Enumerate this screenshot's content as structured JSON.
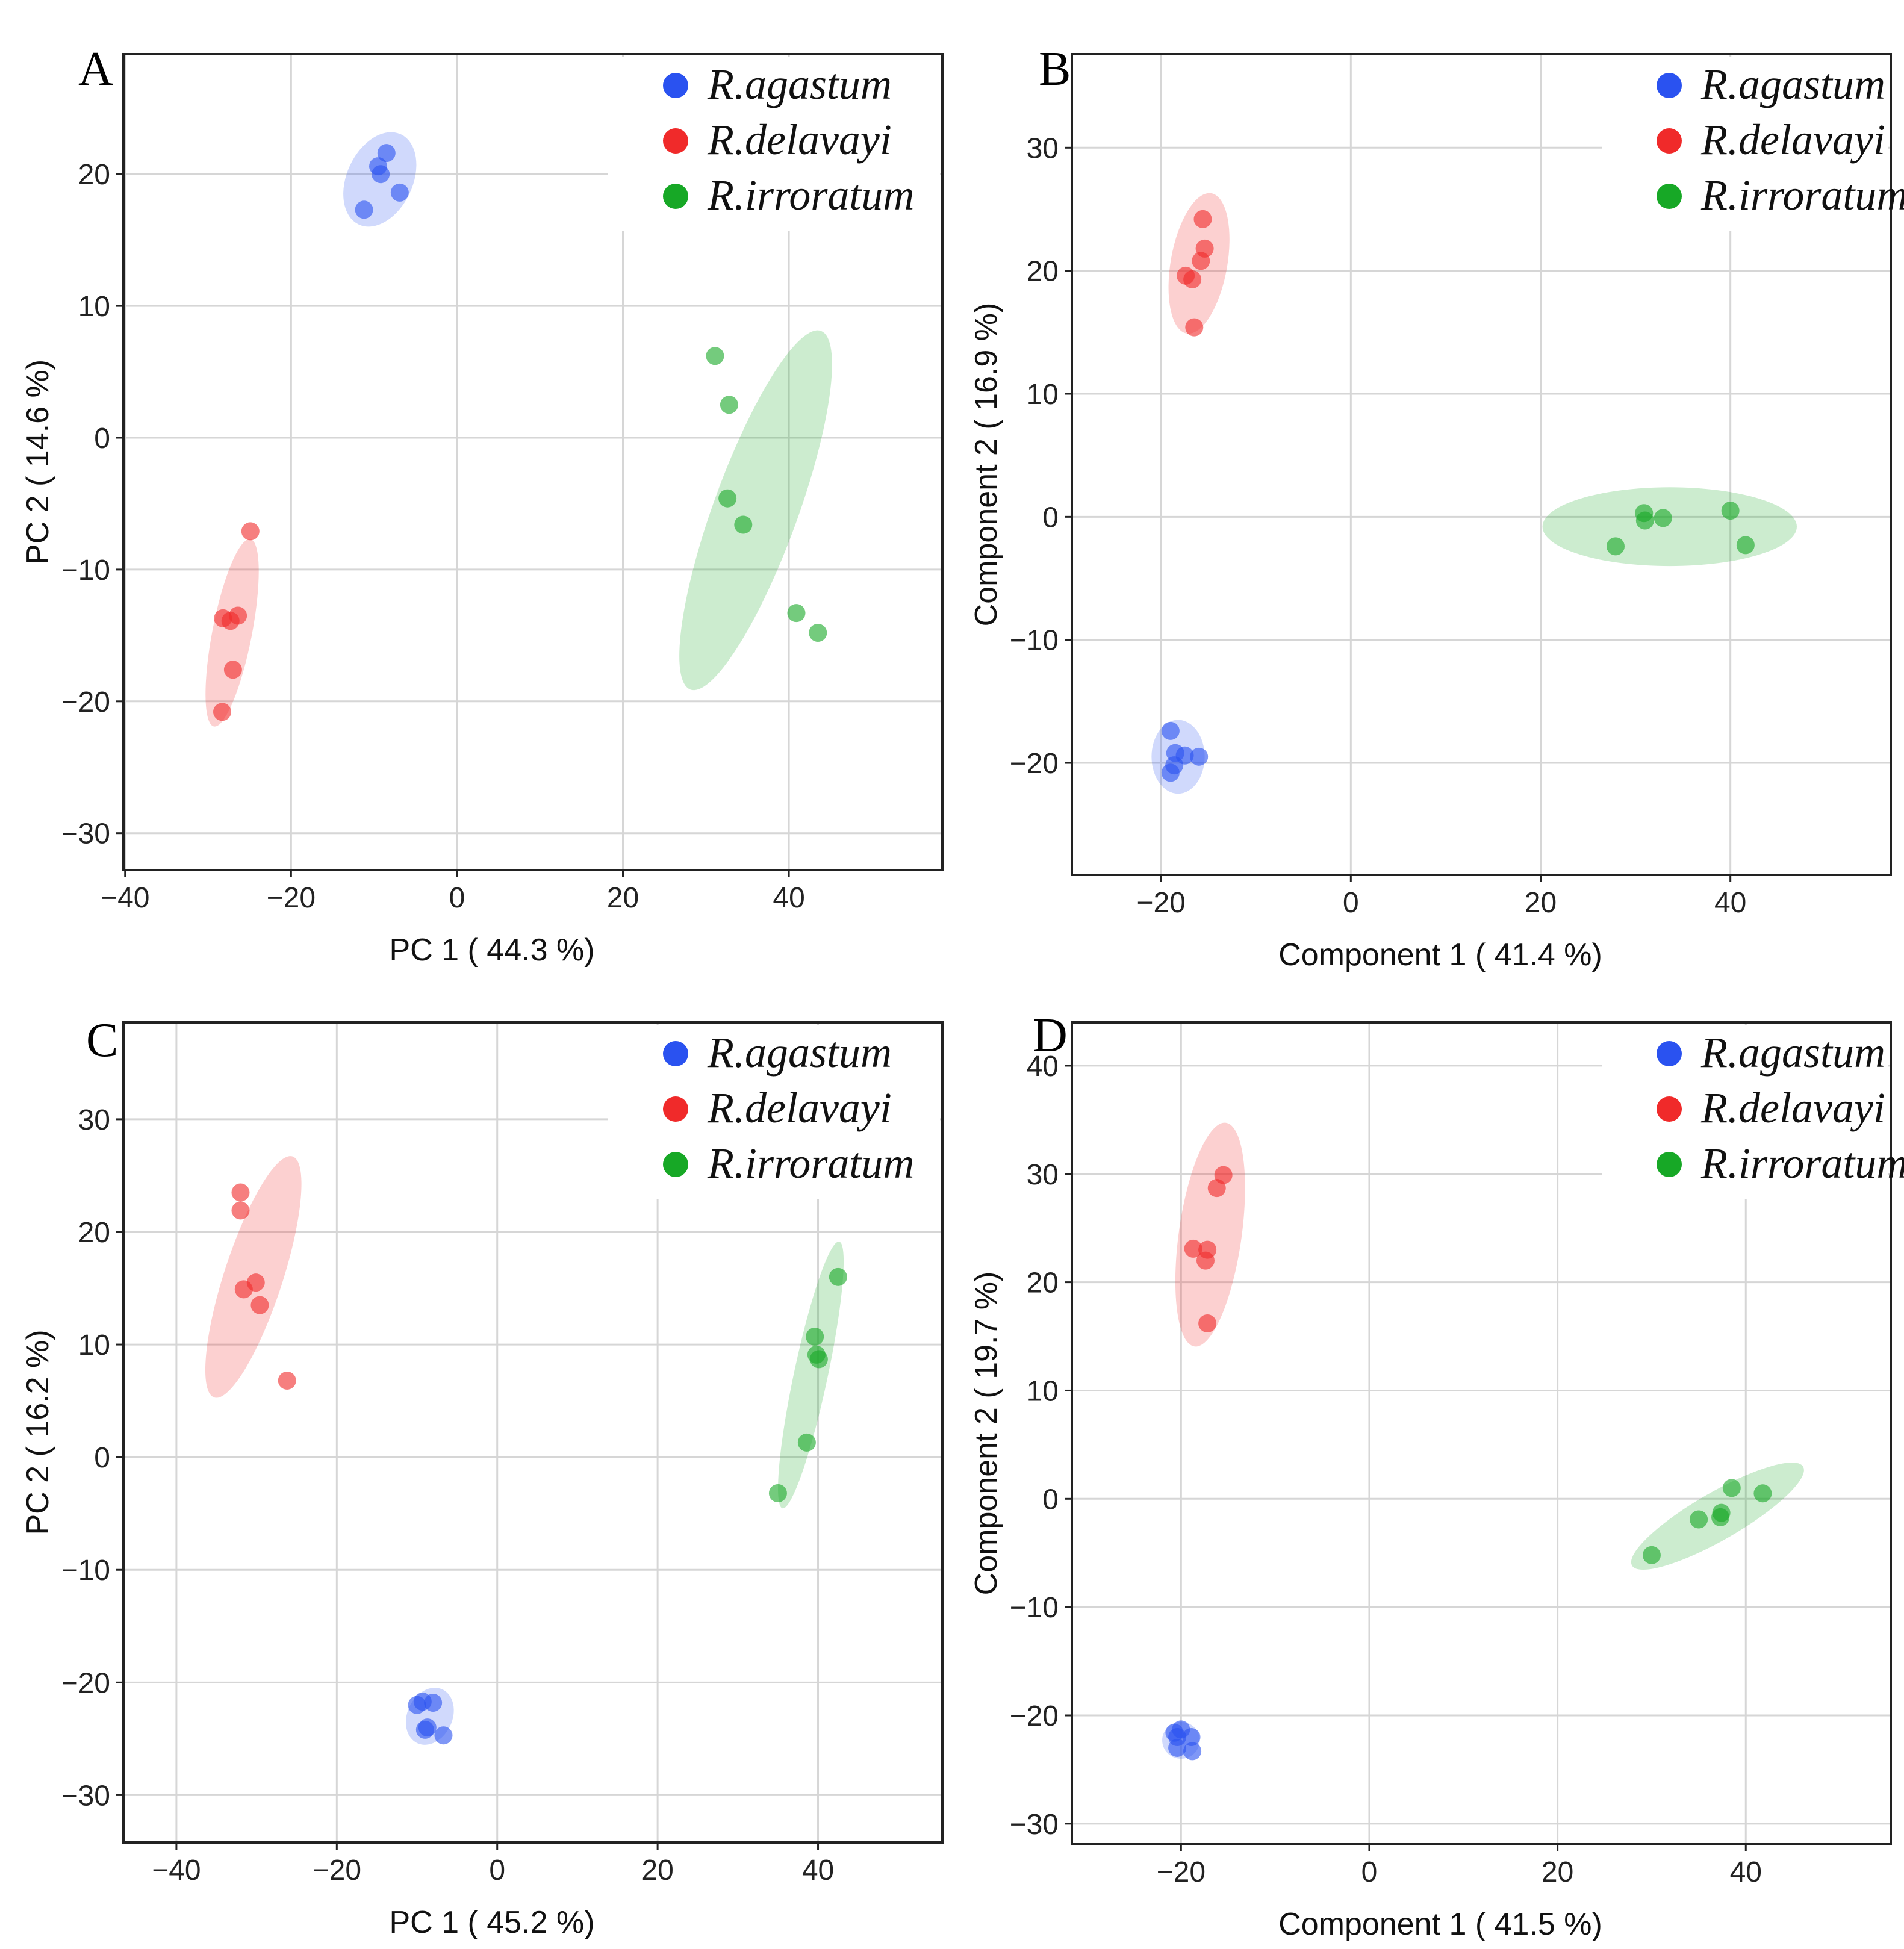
{
  "colors": {
    "R.agastum": "#2a52f0",
    "R.delavayi": "#f02a2a",
    "R.irroratum": "#17a826"
  },
  "chart_data": [
    {
      "type": "scatter",
      "panel": "A",
      "xlabel": "PC 1 ( 44.3 %)",
      "ylabel": "PC 2 ( 14.6 %)",
      "xlim": [
        -40.2,
        58.5
      ],
      "ylim": [
        -32.8,
        29.1
      ],
      "xticks": [
        -40,
        -20,
        0,
        20,
        40
      ],
      "yticks": [
        -30,
        -20,
        -10,
        0,
        10,
        20
      ],
      "legend_position": "top-right",
      "legend": [
        "R.agastum",
        "R.delavayi",
        "R.irroratum"
      ],
      "series": [
        {
          "name": "R.agastum",
          "points": [
            [
              -8.5,
              21.6
            ],
            [
              -9.5,
              20.6
            ],
            [
              -9.2,
              20.0
            ],
            [
              -6.9,
              18.6
            ],
            [
              -11.2,
              17.3
            ]
          ],
          "ellipse": {
            "cx": -9.3,
            "cy": 19.6,
            "rx": 6.0,
            "ry": 2.5,
            "angle": 65
          }
        },
        {
          "name": "R.delavayi",
          "points": [
            [
              -24.9,
              -7.1
            ],
            [
              -26.4,
              -13.5
            ],
            [
              -28.2,
              -13.7
            ],
            [
              -27.3,
              -13.9
            ],
            [
              -27.0,
              -17.6
            ],
            [
              -28.3,
              -20.8
            ]
          ],
          "ellipse": {
            "cx": -27.1,
            "cy": -14.8,
            "rx": 11.5,
            "ry": 1.5,
            "angle": 79
          }
        },
        {
          "name": "R.irroratum",
          "points": [
            [
              31.1,
              6.2
            ],
            [
              32.8,
              2.5
            ],
            [
              32.6,
              -4.6
            ],
            [
              34.5,
              -6.6
            ],
            [
              40.9,
              -13.3
            ],
            [
              43.5,
              -14.8
            ]
          ],
          "ellipse": {
            "cx": 36.0,
            "cy": -5.5,
            "rx": 23.0,
            "ry": 3.2,
            "angle": 70
          }
        }
      ]
    },
    {
      "type": "scatter",
      "panel": "B",
      "xlabel": "Component 1 ( 41.4 %)",
      "ylabel": "Component 2 ( 16.9 %)",
      "xlim": [
        -29.4,
        56.9
      ],
      "ylim": [
        -29.1,
        37.6
      ],
      "xticks": [
        -20,
        0,
        20,
        40
      ],
      "yticks": [
        -20,
        -10,
        0,
        10,
        20,
        30
      ],
      "legend_position": "top-right",
      "legend": [
        "R.agastum",
        "R.delavayi",
        "R.irroratum"
      ],
      "series": [
        {
          "name": "R.agastum",
          "points": [
            [
              -19.0,
              -17.4
            ],
            [
              -18.5,
              -19.2
            ],
            [
              -17.5,
              -19.4
            ],
            [
              -16.0,
              -19.5
            ],
            [
              -19.0,
              -20.8
            ],
            [
              -18.6,
              -20.2
            ]
          ],
          "ellipse": {
            "cx": -18.2,
            "cy": -19.5,
            "rx": 2.8,
            "ry": 3.0,
            "angle": 0
          }
        },
        {
          "name": "R.delavayi",
          "points": [
            [
              -15.6,
              24.2
            ],
            [
              -15.4,
              21.8
            ],
            [
              -15.8,
              20.8
            ],
            [
              -17.4,
              19.6
            ],
            [
              -16.7,
              19.3
            ],
            [
              -16.5,
              15.4
            ]
          ],
          "ellipse": {
            "cx": -16.0,
            "cy": 20.6,
            "rx": 7.5,
            "ry": 2.3,
            "angle": 80
          }
        },
        {
          "name": "R.irroratum",
          "points": [
            [
              30.9,
              0.3
            ],
            [
              31.0,
              -0.3
            ],
            [
              32.9,
              -0.1
            ],
            [
              40.0,
              0.5
            ],
            [
              41.6,
              -2.3
            ],
            [
              27.9,
              -2.4
            ]
          ],
          "ellipse": {
            "cx": 33.6,
            "cy": -0.8,
            "rx": 13.4,
            "ry": 3.2,
            "angle": 0
          }
        }
      ]
    },
    {
      "type": "scatter",
      "panel": "C",
      "xlabel": "PC 1 ( 45.2 %)",
      "ylabel": "PC 2 ( 16.2 %)",
      "xlim": [
        -46.6,
        55.5
      ],
      "ylim": [
        -34.2,
        38.6
      ],
      "xticks": [
        -40,
        -20,
        0,
        20,
        40
      ],
      "yticks": [
        -30,
        -20,
        -10,
        0,
        10,
        20,
        30
      ],
      "legend_position": "top-right",
      "legend": [
        "R.agastum",
        "R.delavayi",
        "R.irroratum"
      ],
      "series": [
        {
          "name": "R.agastum",
          "points": [
            [
              -10.0,
              -22.0
            ],
            [
              -9.3,
              -21.7
            ],
            [
              -8.0,
              -21.8
            ],
            [
              -9.0,
              -24.2
            ],
            [
              -8.7,
              -24.0
            ],
            [
              -6.7,
              -24.7
            ]
          ],
          "ellipse": {
            "cx": -8.4,
            "cy": -23.0,
            "rx": 3.7,
            "ry": 2.0,
            "angle": 65
          }
        },
        {
          "name": "R.delavayi",
          "points": [
            [
              -32.0,
              23.5
            ],
            [
              -32.0,
              21.9
            ],
            [
              -30.1,
              15.5
            ],
            [
              -31.6,
              14.9
            ],
            [
              -29.6,
              13.5
            ],
            [
              -26.2,
              6.8
            ]
          ],
          "ellipse": {
            "cx": -30.4,
            "cy": 16.0,
            "rx": 15.8,
            "ry": 2.6,
            "angle": 72
          }
        },
        {
          "name": "R.irroratum",
          "points": [
            [
              42.5,
              16.0
            ],
            [
              39.6,
              10.7
            ],
            [
              39.8,
              9.1
            ],
            [
              40.1,
              8.7
            ],
            [
              38.6,
              1.3
            ],
            [
              35.0,
              -3.2
            ]
          ],
          "ellipse": {
            "cx": 39.1,
            "cy": 7.3,
            "rx": 17.0,
            "ry": 1.5,
            "angle": 78
          }
        }
      ]
    },
    {
      "type": "scatter",
      "panel": "D",
      "xlabel": "Component 1 ( 41.5 %)",
      "ylabel": "Component 2 ( 19.7 %)",
      "xlim": [
        -31.6,
        55.4
      ],
      "ylim": [
        -31.9,
        44.0
      ],
      "xticks": [
        -20,
        0,
        20,
        40
      ],
      "yticks": [
        -30,
        -20,
        -10,
        0,
        10,
        20,
        30,
        40
      ],
      "legend_position": "top-right",
      "legend": [
        "R.agastum",
        "R.delavayi",
        "R.irroratum"
      ],
      "series": [
        {
          "name": "R.agastum",
          "points": [
            [
              -20.7,
              -21.6
            ],
            [
              -20.0,
              -21.3
            ],
            [
              -20.4,
              -22.0
            ],
            [
              -18.9,
              -22.0
            ],
            [
              -20.4,
              -23.0
            ],
            [
              -18.8,
              -23.3
            ]
          ],
          "ellipse": {
            "cx": -20.0,
            "cy": -22.3,
            "rx": 2.0,
            "ry": 1.7,
            "angle": 0
          }
        },
        {
          "name": "R.delavayi",
          "points": [
            [
              -15.5,
              29.9
            ],
            [
              -16.2,
              28.7
            ],
            [
              -18.7,
              23.1
            ],
            [
              -17.2,
              23.0
            ],
            [
              -17.4,
              22.0
            ],
            [
              -17.2,
              16.2
            ]
          ],
          "ellipse": {
            "cx": -16.9,
            "cy": 24.4,
            "rx": 12.0,
            "ry": 2.9,
            "angle": 82
          }
        },
        {
          "name": "R.irroratum",
          "points": [
            [
              38.5,
              1.0
            ],
            [
              41.8,
              0.5
            ],
            [
              37.4,
              -1.3
            ],
            [
              37.3,
              -1.7
            ],
            [
              35.0,
              -1.9
            ],
            [
              30.0,
              -5.2
            ]
          ],
          "ellipse": {
            "cx": 37.0,
            "cy": -1.6,
            "rx": 10.5,
            "ry": 2.2,
            "angle": 30
          }
        }
      ]
    }
  ]
}
